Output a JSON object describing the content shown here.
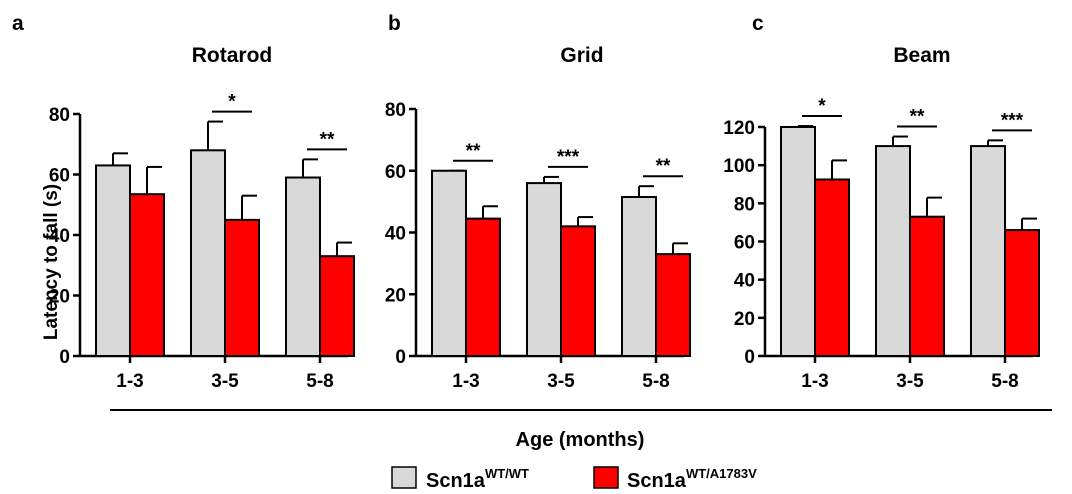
{
  "colors": {
    "wt": "#d9d9d9",
    "mut": "#ff0000",
    "stroke": "#000000"
  },
  "shared": {
    "ylabel": "Latency to fall (s)",
    "xlabel": "Age (months)"
  },
  "legend": [
    {
      "base": "Scn1a",
      "sup": "WT/WT",
      "color": "#d9d9d9"
    },
    {
      "base": "Scn1a",
      "sup": "WT/A1783V",
      "color": "#ff0000"
    }
  ],
  "chart_data": [
    {
      "type": "bar",
      "panel": "a",
      "title": "Rotarod",
      "categories": [
        "1-3",
        "3-5",
        "5-8"
      ],
      "ylim": [
        0,
        80
      ],
      "yticks": [
        0,
        20,
        40,
        60,
        80
      ],
      "series": [
        {
          "name": "Scn1aWT/WT",
          "values": [
            63,
            68,
            59
          ],
          "errors": [
            4,
            9.5,
            6
          ]
        },
        {
          "name": "Scn1aWT/A1783V",
          "values": [
            53.5,
            45,
            33
          ],
          "errors": [
            9,
            8,
            4.5
          ]
        }
      ],
      "significance": [
        "",
        "*",
        "**"
      ]
    },
    {
      "type": "bar",
      "panel": "b",
      "title": "Grid",
      "categories": [
        "1-3",
        "3-5",
        "5-8"
      ],
      "ylim": [
        0,
        80
      ],
      "yticks": [
        0,
        20,
        40,
        60,
        80
      ],
      "series": [
        {
          "name": "Scn1aWT/WT",
          "values": [
            60,
            56,
            51.5
          ],
          "errors": [
            0,
            2,
            3.5
          ]
        },
        {
          "name": "Scn1aWT/A1783V",
          "values": [
            44.5,
            42,
            33
          ],
          "errors": [
            4,
            3,
            3.5
          ]
        }
      ],
      "significance": [
        "**",
        "***",
        "**"
      ]
    },
    {
      "type": "bar",
      "panel": "c",
      "title": "Beam",
      "categories": [
        "1-3",
        "3-5",
        "5-8"
      ],
      "ylim": [
        0,
        120
      ],
      "yticks": [
        0,
        20,
        40,
        60,
        80,
        100,
        120
      ],
      "series": [
        {
          "name": "Scn1aWT/WT",
          "values": [
            120,
            110,
            110
          ],
          "errors": [
            0.5,
            5,
            3
          ]
        },
        {
          "name": "Scn1aWT/A1783V",
          "values": [
            92.5,
            73,
            66
          ],
          "errors": [
            10,
            10,
            6
          ]
        }
      ],
      "significance": [
        "*",
        "**",
        "***"
      ]
    }
  ]
}
